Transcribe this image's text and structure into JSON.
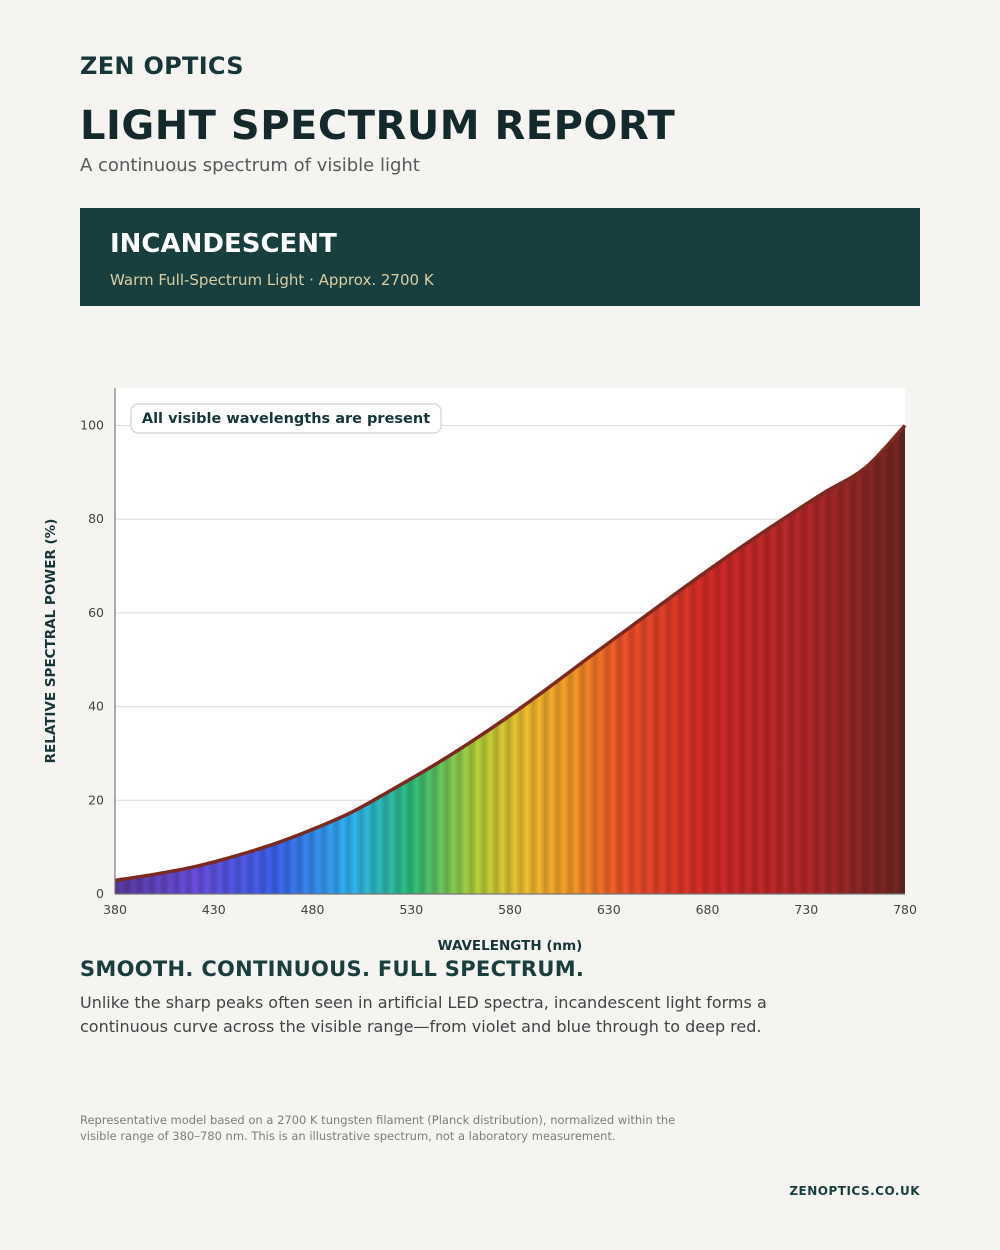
{
  "brand": "ZEN OPTICS",
  "title": "LIGHT SPECTRUM REPORT",
  "subtitle": "A continuous spectrum of visible light",
  "banner": {
    "title": "INCANDESCENT",
    "subtitle": "Warm Full-Spectrum Light · Approx. 2700 K"
  },
  "headline": "SMOOTH. CONTINUOUS. FULL SPECTRUM.",
  "body": "Unlike the sharp peaks often seen in artificial LED spectra, incandescent light forms a continuous curve across the visible range—from violet and blue through to deep red.",
  "footnote": "Representative model based on a 2700 K tungsten filament (Planck distribution), normalized within the visible range of 380–780 nm. This is an illustrative spectrum, not a laboratory measurement.",
  "website": "ZENOPTICS.CO.UK",
  "colors": {
    "background": "#f5f4f0",
    "banner": "#193e3e",
    "accent": "#d8cfa6",
    "curve": "#7a2a20"
  },
  "chart_data": {
    "type": "area",
    "annotation": "All visible wavelengths are present",
    "xlabel": "WAVELENGTH (nm)",
    "ylabel": "RELATIVE SPECTRAL POWER (%)",
    "xlim": [
      380,
      780
    ],
    "ylim": [
      0,
      108
    ],
    "xticks": [
      380,
      430,
      480,
      530,
      580,
      630,
      680,
      730,
      780
    ],
    "yticks": [
      0,
      20,
      40,
      60,
      80,
      100
    ],
    "grid": true,
    "x": [
      380,
      400,
      420,
      440,
      460,
      480,
      500,
      520,
      540,
      560,
      580,
      600,
      620,
      640,
      660,
      680,
      700,
      720,
      740,
      760,
      780
    ],
    "y": [
      2.9,
      4.2,
      5.8,
      8.0,
      10.6,
      13.8,
      17.5,
      22.2,
      27.1,
      32.4,
      38.1,
      44.2,
      50.5,
      56.7,
      62.9,
      69.0,
      74.9,
      80.5,
      85.9,
      91.0,
      100.0
    ]
  }
}
